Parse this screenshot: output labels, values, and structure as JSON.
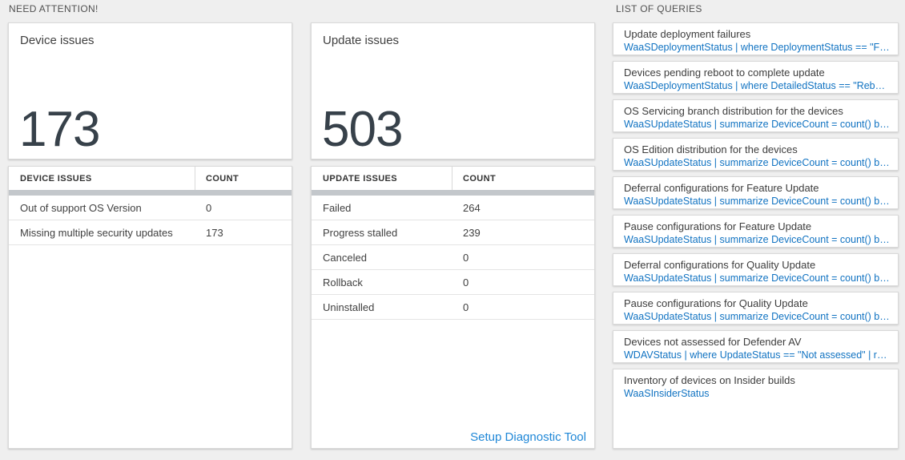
{
  "need_attention": {
    "header": "NEED ATTENTION!",
    "device_card": {
      "title": "Device issues",
      "value": "173"
    },
    "device_table": {
      "columns": [
        "DEVICE ISSUES",
        "COUNT"
      ],
      "rows": [
        [
          "Out of support OS Version",
          "0"
        ],
        [
          "Missing multiple security updates",
          "173"
        ]
      ]
    },
    "update_card": {
      "title": "Update issues",
      "value": "503"
    },
    "update_table": {
      "columns": [
        "UPDATE ISSUES",
        "COUNT"
      ],
      "rows": [
        [
          "Failed",
          "264"
        ],
        [
          "Progress stalled",
          "239"
        ],
        [
          "Canceled",
          "0"
        ],
        [
          "Rollback",
          "0"
        ],
        [
          "Uninstalled",
          "0"
        ]
      ],
      "footer_link": "Setup Diagnostic Tool"
    }
  },
  "queries": {
    "header": "LIST OF QUERIES",
    "items": [
      {
        "title": "Update deployment failures",
        "query": "WaaSDeploymentStatus | where DeploymentStatus == \"Failed\" |..."
      },
      {
        "title": "Devices pending reboot to complete update",
        "query": "WaaSDeploymentStatus | where DetailedStatus == \"Reboot pend..."
      },
      {
        "title": "OS Servicing branch distribution for the devices",
        "query": "WaaSUpdateStatus | summarize DeviceCount = count() by OSSer..."
      },
      {
        "title": "OS Edition distribution for the devices",
        "query": "WaaSUpdateStatus | summarize DeviceCount = count() by OSEdit..."
      },
      {
        "title": "Deferral configurations for Feature Update",
        "query": "WaaSUpdateStatus | summarize DeviceCount = count() by Featur..."
      },
      {
        "title": "Pause configurations for Feature Update",
        "query": "WaaSUpdateStatus | summarize DeviceCount = count() by Featur..."
      },
      {
        "title": "Deferral configurations for Quality Update",
        "query": "WaaSUpdateStatus | summarize DeviceCount = count() by Qualit..."
      },
      {
        "title": "Pause configurations for Quality Update",
        "query": "WaaSUpdateStatus | summarize DeviceCount = count() by Qualit..."
      },
      {
        "title": "Devices not assessed for Defender AV",
        "query": "WDAVStatus | where UpdateStatus == \"Not assessed\" | render ta..."
      },
      {
        "title": "Inventory of devices on Insider builds",
        "query": "WaaSInsiderStatus"
      }
    ]
  },
  "colors": {
    "page_bg": "#efefef",
    "card_border": "#d9d9d9",
    "table_bar_gray": "#c3c7cb",
    "big_number": "#37414a",
    "query_blue": "#1173c2",
    "link_blue": "#1f87d7"
  }
}
